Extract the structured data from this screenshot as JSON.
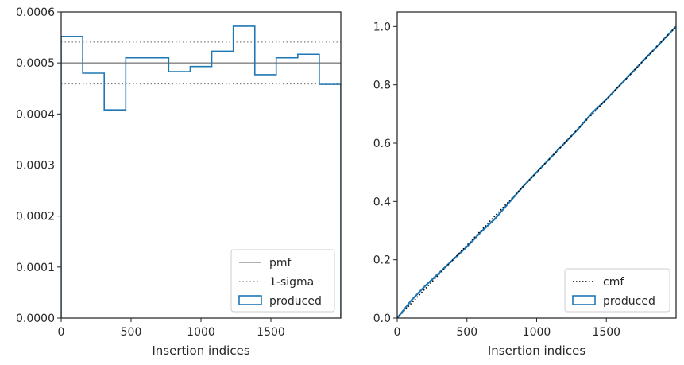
{
  "chart_data": [
    {
      "type": "step-histogram",
      "xlabel": "Insertion indices",
      "ylabel": "",
      "xlim": [
        0,
        2000
      ],
      "ylim": [
        0,
        0.0006
      ],
      "xticks": [
        0,
        500,
        1000,
        1500
      ],
      "xtick_labels": [
        "0",
        "500",
        "1000",
        "1500"
      ],
      "yticks": [
        0,
        0.0001,
        0.0002,
        0.0003,
        0.0004,
        0.0005,
        0.0006
      ],
      "ytick_labels": [
        "0.0000",
        "0.0001",
        "0.0002",
        "0.0003",
        "0.0004",
        "0.0005",
        "0.0006"
      ],
      "bin_edges": [
        0,
        154,
        308,
        462,
        615,
        769,
        923,
        1077,
        1231,
        1385,
        1538,
        1692,
        1846,
        2000
      ],
      "values": [
        0.000552,
        0.00048,
        0.000408,
        0.00051,
        0.00051,
        0.000483,
        0.000493,
        0.000523,
        0.000572,
        0.000477,
        0.00051,
        0.000517,
        0.000458
      ],
      "pmf": 0.0005,
      "sigma_upper": 0.000541,
      "sigma_lower": 0.000459,
      "legend": {
        "placement": "lower-right",
        "entries": [
          "pmf",
          "1-sigma",
          "produced"
        ]
      },
      "colors": {
        "pmf": "#808080",
        "sigma": "#808080",
        "produced": "#1f77b4"
      }
    },
    {
      "type": "line",
      "xlabel": "Insertion indices",
      "ylabel": "",
      "xlim": [
        0,
        2000
      ],
      "ylim": [
        0,
        1.05
      ],
      "xticks": [
        0,
        500,
        1000,
        1500
      ],
      "xtick_labels": [
        "0",
        "500",
        "1000",
        "1500"
      ],
      "yticks": [
        0,
        0.2,
        0.4,
        0.6,
        0.8,
        1.0
      ],
      "ytick_labels": [
        "0.0",
        "0.2",
        "0.4",
        "0.6",
        "0.8",
        "1.0"
      ],
      "series": [
        {
          "name": "cmf",
          "x": [
            0,
            2000
          ],
          "y": [
            0,
            1.0
          ],
          "style": "dotted",
          "color": "#000000"
        },
        {
          "name": "produced",
          "x": [
            0,
            50,
            100,
            150,
            200,
            300,
            400,
            500,
            600,
            700,
            800,
            900,
            1000,
            1100,
            1200,
            1300,
            1400,
            1500,
            1600,
            1700,
            1800,
            1900,
            2000
          ],
          "y": [
            0,
            0.03,
            0.06,
            0.085,
            0.11,
            0.155,
            0.2,
            0.245,
            0.295,
            0.34,
            0.395,
            0.45,
            0.5,
            0.55,
            0.6,
            0.65,
            0.705,
            0.75,
            0.8,
            0.85,
            0.9,
            0.95,
            1.0
          ],
          "style": "solid",
          "color": "#1f77b4"
        }
      ],
      "legend": {
        "placement": "lower-right",
        "entries": [
          "cmf",
          "produced"
        ]
      }
    }
  ]
}
